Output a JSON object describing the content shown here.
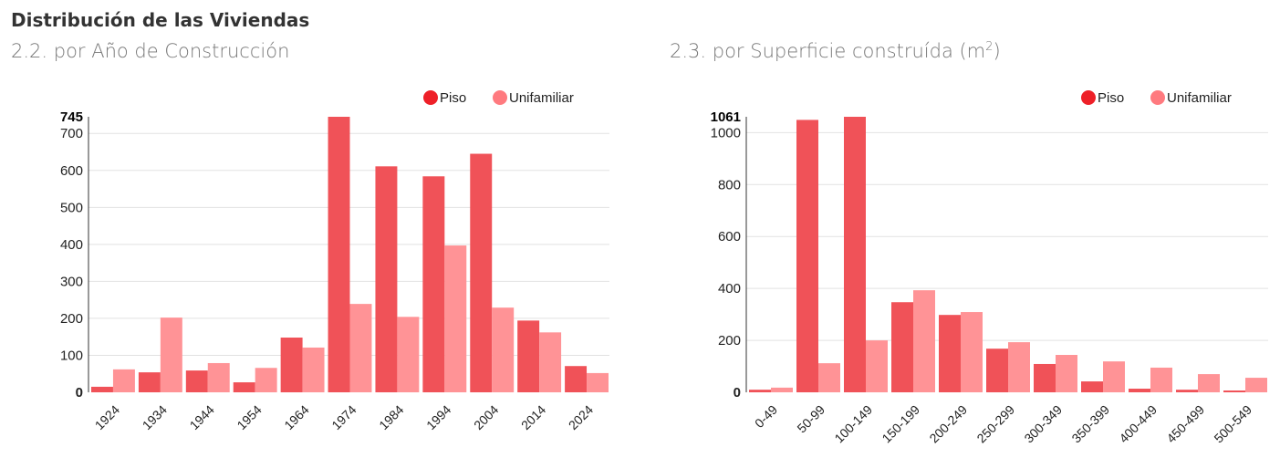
{
  "header": {
    "title": "Distribución de las Viviendas",
    "subtitle_left": "2.2. por Año de Construcción",
    "subtitle_right_main": "2.3. por Superficie construída (m",
    "subtitle_right_sup": "2",
    "subtitle_right_end": ")"
  },
  "colors": {
    "piso": "#ee2028",
    "unifamiliar": "#ff7a7f",
    "piso_bar": "#f05258",
    "unifamiliar_bar": "#ff9396"
  },
  "chart_data": [
    {
      "type": "bar",
      "title": "2.2. por Año de Construcción",
      "legend": [
        "Piso",
        "Unifamiliar"
      ],
      "legend_position": "top-right",
      "categories": [
        "1924",
        "1934",
        "1944",
        "1954",
        "1964",
        "1974",
        "1984",
        "1994",
        "2004",
        "2014",
        "2024"
      ],
      "series": [
        {
          "name": "Piso",
          "values": [
            15,
            54,
            59,
            27,
            148,
            745,
            611,
            584,
            645,
            194,
            71
          ]
        },
        {
          "name": "Unifamiliar",
          "values": [
            62,
            202,
            79,
            66,
            121,
            239,
            204,
            397,
            229,
            162,
            52
          ]
        }
      ],
      "yticks": [
        0,
        100,
        200,
        300,
        400,
        500,
        600,
        700
      ],
      "ymax_label": "745",
      "ylim": [
        0,
        745
      ],
      "grid": true
    },
    {
      "type": "bar",
      "title": "2.3. por Superficie construída (m2)",
      "legend": [
        "Piso",
        "Unifamiliar"
      ],
      "legend_position": "top-right",
      "categories": [
        "0-49",
        "50-99",
        "100-149",
        "150-199",
        "200-249",
        "250-299",
        "300-349",
        "350-399",
        "400-449",
        "450-499",
        "500-549"
      ],
      "series": [
        {
          "name": "Piso",
          "values": [
            10,
            1049,
            1061,
            347,
            298,
            168,
            109,
            42,
            14,
            10,
            7
          ]
        },
        {
          "name": "Unifamiliar",
          "values": [
            18,
            112,
            200,
            393,
            309,
            193,
            144,
            119,
            95,
            70,
            56
          ]
        }
      ],
      "yticks": [
        0,
        200,
        400,
        600,
        800,
        1000
      ],
      "ymax_label": "1061",
      "ylim": [
        0,
        1061
      ],
      "grid": true
    }
  ]
}
